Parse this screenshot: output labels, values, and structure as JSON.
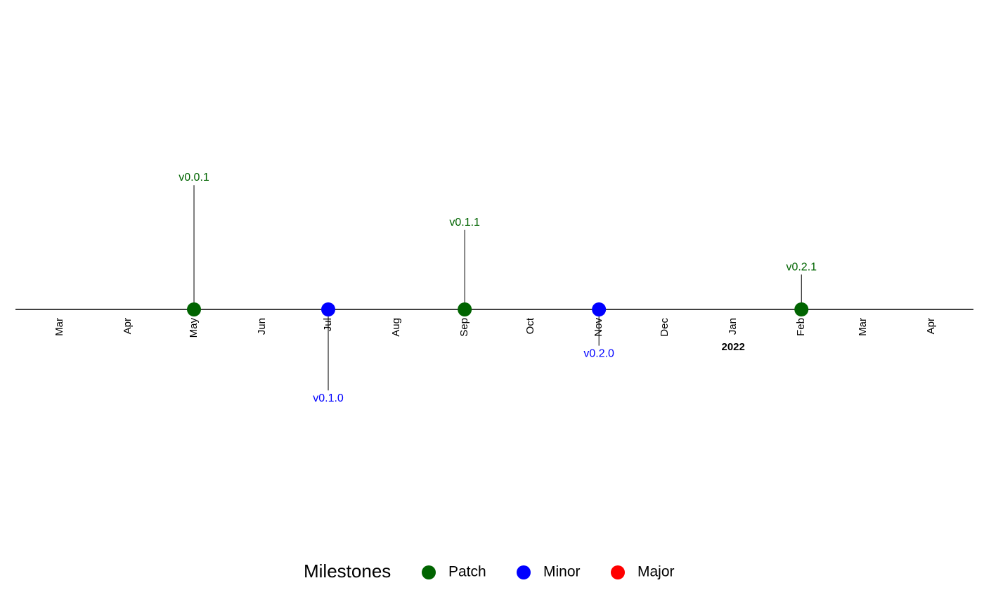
{
  "chart_data": {
    "type": "timeline",
    "title": "",
    "x_axis": {
      "type": "date",
      "range": [
        "2021-03-01",
        "2022-04-01"
      ],
      "ticks": [
        {
          "date": "2021-03-01",
          "label": "Mar"
        },
        {
          "date": "2021-04-01",
          "label": "Apr"
        },
        {
          "date": "2021-05-01",
          "label": "May"
        },
        {
          "date": "2021-06-01",
          "label": "Jun"
        },
        {
          "date": "2021-07-01",
          "label": "Jul"
        },
        {
          "date": "2021-08-01",
          "label": "Aug"
        },
        {
          "date": "2021-09-01",
          "label": "Sep"
        },
        {
          "date": "2021-10-01",
          "label": "Oct"
        },
        {
          "date": "2021-11-01",
          "label": "Nov"
        },
        {
          "date": "2021-12-01",
          "label": "Dec"
        },
        {
          "date": "2022-01-01",
          "label": "Jan"
        },
        {
          "date": "2022-02-01",
          "label": "Feb"
        },
        {
          "date": "2022-03-01",
          "label": "Mar"
        },
        {
          "date": "2022-04-01",
          "label": "Apr"
        }
      ],
      "year_labels": [
        {
          "date": "2022-01-01",
          "label": "2022"
        }
      ]
    },
    "y_range": [
      -4,
      6
    ],
    "milestones": [
      {
        "date": "2021-05-01",
        "label": "v0.0.1",
        "type": "Patch",
        "height": 6
      },
      {
        "date": "2021-07-01",
        "label": "v0.1.0",
        "type": "Minor",
        "height": -4
      },
      {
        "date": "2021-09-01",
        "label": "v0.1.1",
        "type": "Patch",
        "height": 4
      },
      {
        "date": "2021-11-01",
        "label": "v0.2.0",
        "type": "Minor",
        "height": -2
      },
      {
        "date": "2022-02-01",
        "label": "v0.2.1",
        "type": "Patch",
        "height": 2
      }
    ],
    "colors": {
      "Patch": "#006400",
      "Minor": "#0000ff",
      "Major": "#ff0000"
    },
    "legend": {
      "title": "Milestones",
      "position": "bottom",
      "items": [
        {
          "name": "Patch",
          "color": "#006400"
        },
        {
          "name": "Minor",
          "color": "#0000ff"
        },
        {
          "name": "Major",
          "color": "#ff0000"
        }
      ]
    }
  }
}
